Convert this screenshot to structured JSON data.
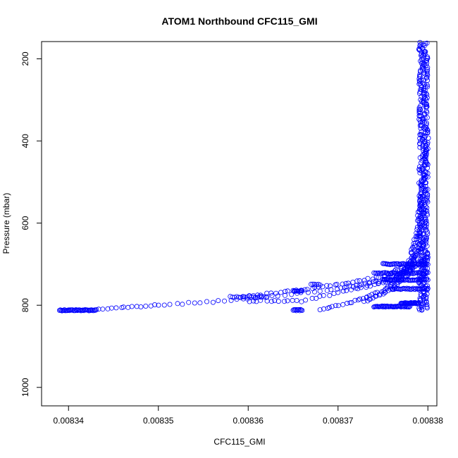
{
  "chart_data": {
    "type": "scatter",
    "title": "ATOM1 Northbound CFC115_GMI",
    "xlabel": "CFC115_GMI",
    "ylabel": "Pressure (mbar)",
    "xlim": [
      0.008337,
      0.008381
    ],
    "ylim": [
      1045,
      158
    ],
    "y_reversed": true,
    "grid": false,
    "marker": "open-circle",
    "color": "#0000ff",
    "xticks": [
      {
        "value": 0.00834,
        "label": "0.00834"
      },
      {
        "value": 0.00835,
        "label": "0.00835"
      },
      {
        "value": 0.00836,
        "label": "0.00836"
      },
      {
        "value": 0.00837,
        "label": "0.00837"
      },
      {
        "value": 0.00838,
        "label": "0.00838"
      }
    ],
    "yticks": [
      {
        "value": 200,
        "label": "200"
      },
      {
        "value": 400,
        "label": "400"
      },
      {
        "value": 600,
        "label": "600"
      },
      {
        "value": 800,
        "label": "800"
      },
      {
        "value": 1000,
        "label": "1000"
      }
    ],
    "segments": [
      {
        "desc": "near-surface low values",
        "x": [
          0.008339,
          0.008343
        ],
        "y": [
          812,
          812
        ],
        "n": 45
      },
      {
        "desc": "low-level gradient",
        "points": [
          [
            0.008343,
            810
          ],
          [
            0.00835,
            800
          ],
          [
            0.00836,
            785
          ],
          [
            0.00837,
            760
          ],
          [
            0.008375,
            740
          ],
          [
            0.008378,
            715
          ],
          [
            0.00838,
            680
          ]
        ],
        "n": 90
      },
      {
        "desc": "mid-level gradient",
        "points": [
          [
            0.008359,
            780
          ],
          [
            0.008365,
            765
          ],
          [
            0.00837,
            750
          ],
          [
            0.008375,
            730
          ],
          [
            0.008378,
            700
          ],
          [
            0.00838,
            640
          ]
        ],
        "n": 60
      },
      {
        "desc": "boundary curve A",
        "points": [
          [
            0.00836,
            790
          ],
          [
            0.008366,
            790
          ],
          [
            0.008372,
            760
          ],
          [
            0.008376,
            740
          ],
          [
            0.008378,
            700
          ],
          [
            0.008379,
            620
          ]
        ],
        "n": 60
      },
      {
        "desc": "boundary curve B",
        "points": [
          [
            0.008368,
            810
          ],
          [
            0.008372,
            790
          ],
          [
            0.008375,
            765
          ],
          [
            0.008377,
            730
          ],
          [
            0.008378,
            690
          ],
          [
            0.008379,
            600
          ],
          [
            0.00838,
            520
          ]
        ],
        "n": 70
      },
      {
        "desc": "upper curve C",
        "points": [
          [
            0.008373,
            790
          ],
          [
            0.008376,
            760
          ],
          [
            0.008378,
            720
          ],
          [
            0.008379,
            660
          ],
          [
            0.008379,
            560
          ],
          [
            0.00838,
            380
          ]
        ],
        "n": 70
      },
      {
        "desc": "cluster 0.008365 at 812",
        "x": [
          0.008365,
          0.008366
        ],
        "y": [
          812,
          812
        ],
        "n": 12
      },
      {
        "desc": "cluster 0.008359 at 780",
        "x": [
          0.008358,
          0.008362
        ],
        "y": [
          780,
          780
        ],
        "n": 18
      },
      {
        "desc": "cluster 0.008365 at 765",
        "x": [
          0.008365,
          0.008366
        ],
        "y": [
          765,
          765
        ],
        "n": 10
      },
      {
        "desc": "cluster 0.008367 at 750",
        "x": [
          0.008367,
          0.008368
        ],
        "y": [
          750,
          750
        ],
        "n": 6
      },
      {
        "desc": "band 700",
        "x": [
          0.008375,
          0.00838
        ],
        "y": [
          700,
          700
        ],
        "n": 45
      },
      {
        "desc": "band 722",
        "x": [
          0.008374,
          0.00838
        ],
        "y": [
          722,
          722
        ],
        "n": 45
      },
      {
        "desc": "band 738",
        "x": [
          0.008375,
          0.00838
        ],
        "y": [
          738,
          738
        ],
        "n": 45
      },
      {
        "desc": "band 760",
        "x": [
          0.008376,
          0.00838
        ],
        "y": [
          760,
          760
        ],
        "n": 35
      },
      {
        "desc": "band 795",
        "x": [
          0.008377,
          0.008379
        ],
        "y": [
          795,
          795
        ],
        "n": 30
      },
      {
        "desc": "band 803",
        "x": [
          0.008374,
          0.008378
        ],
        "y": [
          803,
          803
        ],
        "n": 45
      },
      {
        "desc": "upper column",
        "x": [
          0.008379,
          0.00838
        ],
        "y": [
          160,
          812
        ],
        "n": 420
      }
    ]
  }
}
